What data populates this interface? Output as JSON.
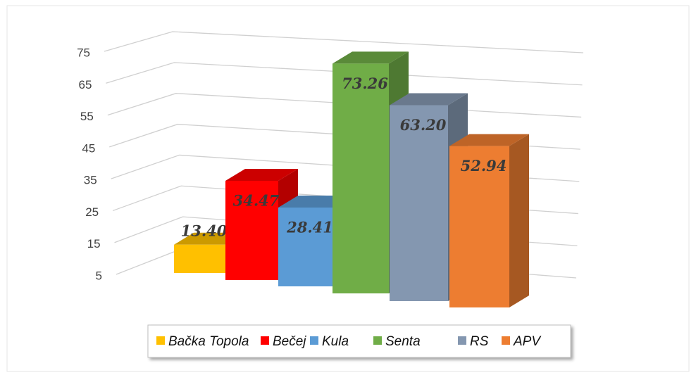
{
  "chart_data": {
    "type": "bar3d",
    "categories": [
      "Bačka Topola",
      "Bečej",
      "Kula",
      "Senta",
      "RS",
      "APV"
    ],
    "series": [
      {
        "name": "values",
        "values": [
          13.4,
          34.47,
          28.41,
          73.26,
          63.2,
          52.94
        ],
        "value_labels": [
          "13.40",
          "34.47",
          "28.41",
          "73.26",
          "63.20",
          "52.94"
        ]
      }
    ],
    "colors": [
      "#ffc000",
      "#ff0000",
      "#5b9bd5",
      "#70ad47",
      "#8497b0",
      "#ed7d31"
    ],
    "ylim": [
      5,
      75
    ],
    "yticks": [
      5,
      15,
      25,
      35,
      45,
      55,
      65,
      75
    ],
    "grid": true,
    "legend": "bottom"
  }
}
